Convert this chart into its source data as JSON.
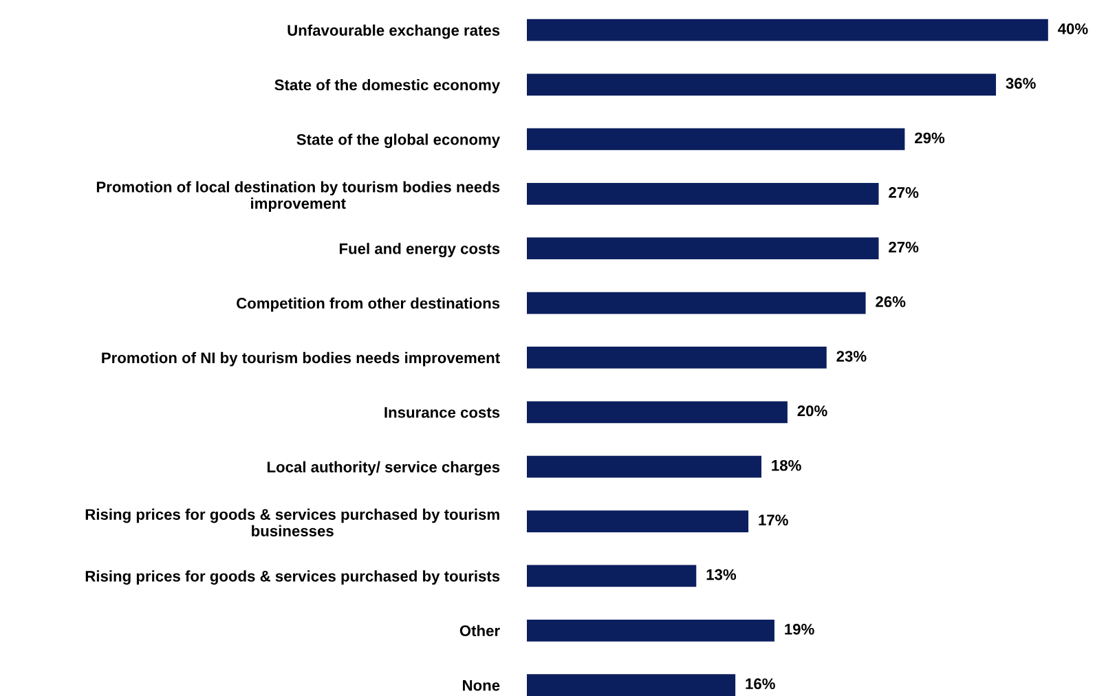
{
  "chart_data": {
    "type": "bar",
    "orientation": "horizontal",
    "categories": [
      "Unfavourable exchange rates",
      "State of the domestic economy",
      "State of the global economy",
      "Promotion of local destination by tourism bodies needs improvement",
      "Fuel and energy costs",
      "Competition from other destinations",
      "Promotion of NI by tourism bodies needs improvement",
      "Insurance costs",
      "Local authority/ service charges",
      "Rising prices for goods & services purchased by tourism businesses",
      "Rising prices for goods & services purchased by tourists",
      "Other",
      "None"
    ],
    "values": [
      40,
      36,
      29,
      27,
      27,
      26,
      23,
      20,
      18,
      17,
      13,
      19,
      16
    ],
    "value_labels": [
      "40%",
      "36%",
      "29%",
      "27%",
      "27%",
      "26%",
      "23%",
      "20%",
      "18%",
      "17%",
      "13%",
      "19%",
      "16%"
    ],
    "color": "#0b1f5e",
    "grid": false,
    "legend": false
  }
}
